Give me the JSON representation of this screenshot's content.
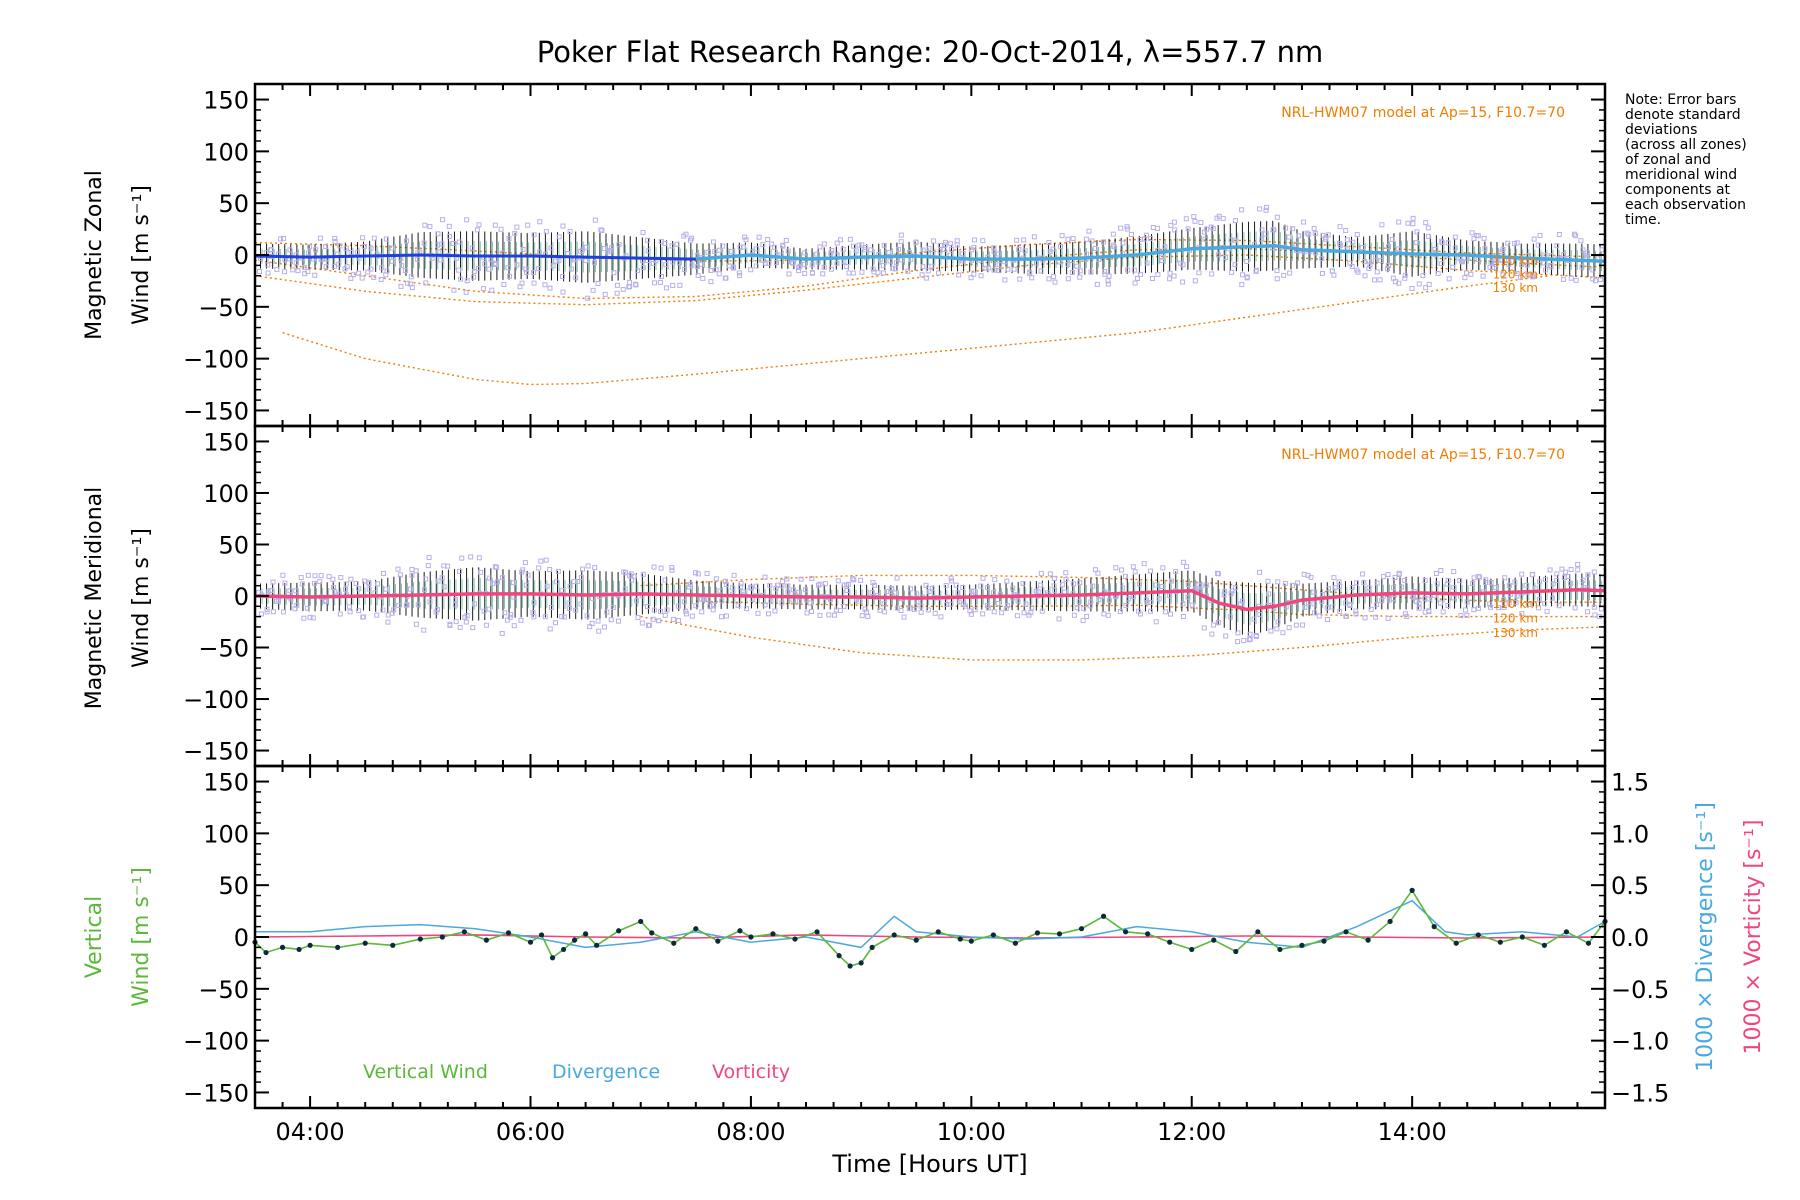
{
  "chart_data": {
    "type": "line",
    "title": "Poker Flat Research Range: 20-Oct-2014, λ=557.7 nm",
    "xlabel": "Time [Hours UT]",
    "xlim": [
      3.5,
      15.75
    ],
    "x_ticks": [
      {
        "value": 4,
        "label": "04:00"
      },
      {
        "value": 6,
        "label": "06:00"
      },
      {
        "value": 8,
        "label": "08:00"
      },
      {
        "value": 10,
        "label": "10:00"
      },
      {
        "value": 12,
        "label": "12:00"
      },
      {
        "value": 14,
        "label": "14:00"
      }
    ],
    "note": [
      "Note: Error bars",
      "denote standard",
      "deviations",
      "(across all zones)",
      "of zonal and",
      "meridional wind",
      "components at",
      "each observation",
      "time."
    ],
    "colors": {
      "model": "#f07c00",
      "zonal": "#1f3fe0",
      "zonal_late": "#4aa8e0",
      "meridional": "#f0457f",
      "vertical": "#5cb83a",
      "divergence": "#4aa8e0",
      "vorticity": "#f0457f",
      "scatter": "#b6b0e8",
      "points": "#0a2a3a"
    },
    "panels": [
      {
        "id": "zonal",
        "ylabel_line1": "Magnetic Zonal",
        "ylabel_line2": "Wind [m s⁻¹]",
        "ylim": [
          -165,
          165
        ],
        "y_ticks": [
          "150",
          "100",
          "50",
          "0",
          "−50",
          "−100",
          "−150"
        ],
        "y_tick_values": [
          150,
          100,
          50,
          0,
          -50,
          -100,
          -150
        ],
        "model_label": "NRL-HWM07 model at Ap=15, F10.7=70",
        "model_curves": [
          {
            "label": "110 km",
            "x": [
              3.5,
              4.5,
              5.5,
              6.5,
              7.5,
              8.5,
              9.5,
              10.5,
              11.5,
              12.5,
              13.5,
              14.5,
              15.75
            ],
            "y": [
              12,
              9,
              4,
              -2,
              -6,
              -5,
              2,
              10,
              15,
              14,
              8,
              2,
              -2
            ]
          },
          {
            "label": "120 km",
            "x": [
              3.5,
              4.5,
              5.5,
              6.5,
              7.5,
              8.5,
              9.5,
              10.5,
              11.5,
              12.5,
              13.5,
              14.5,
              15.75
            ],
            "y": [
              -5,
              -20,
              -35,
              -42,
              -40,
              -30,
              -15,
              -3,
              5,
              6,
              2,
              -5,
              -12
            ]
          },
          {
            "label": "130 km",
            "x": [
              3.5,
              4.5,
              5.5,
              6.5,
              7.5,
              8.5,
              9.5,
              10.5,
              11.5,
              12.5,
              13.5,
              14.5,
              15.75
            ],
            "y": [
              -20,
              -35,
              -45,
              -48,
              -44,
              -34,
              -22,
              -10,
              -2,
              0,
              -6,
              -15,
              -22
            ]
          },
          {
            "label": "",
            "x": [
              3.75,
              4.5,
              5.5,
              6.0,
              6.5,
              7.5,
              8.5,
              9.5,
              10.5,
              11.5,
              12.5,
              13.5,
              14.5,
              15.25
            ],
            "y": [
              -75,
              -100,
              -120,
              -125,
              -124,
              -115,
              -105,
              -95,
              -85,
              -75,
              -60,
              -45,
              -30,
              -20
            ]
          }
        ],
        "km_labels": [
          "110 km",
          "120 km",
          "130 km"
        ],
        "km_label_values": [
          -6,
          -19,
          -32
        ],
        "mean_x": [
          3.5,
          4.0,
          4.5,
          5.0,
          5.5,
          6.0,
          6.5,
          7.0,
          7.5,
          8.0,
          8.5,
          9.0,
          9.5,
          10.0,
          10.5,
          11.0,
          11.5,
          12.0,
          12.5,
          12.75,
          13.0,
          13.5,
          14.0,
          14.5,
          15.0,
          15.5,
          15.75
        ],
        "mean_y": [
          -1,
          -2,
          -1,
          0,
          -1,
          -1,
          -2,
          -3,
          -4,
          0,
          -4,
          -2,
          -1,
          -4,
          -4,
          -3,
          0,
          6,
          8,
          9,
          5,
          3,
          1,
          0,
          -3,
          -5,
          -6
        ],
        "spread": [
          12,
          12,
          14,
          22,
          24,
          22,
          25,
          20,
          15,
          12,
          10,
          12,
          14,
          12,
          14,
          16,
          18,
          20,
          24,
          24,
          18,
          14,
          22,
          14,
          14,
          16,
          16
        ]
      },
      {
        "id": "meridional",
        "ylabel_line1": "Magnetic Meridional",
        "ylabel_line2": "Wind [m s⁻¹]",
        "ylim": [
          -165,
          165
        ],
        "y_ticks": [
          "150",
          "100",
          "50",
          "0",
          "−50",
          "−100",
          "−150"
        ],
        "y_tick_values": [
          150,
          100,
          50,
          0,
          -50,
          -100,
          -150
        ],
        "model_label": "NRL-HWM07 model at Ap=15, F10.7=70",
        "model_curves": [
          {
            "label": "110 km",
            "x": [
              7.0,
              8.0,
              9.0,
              10.0,
              11.0,
              12.0,
              13.0,
              14.0,
              15.0,
              15.75
            ],
            "y": [
              10,
              16,
              20,
              20,
              18,
              14,
              6,
              -2,
              -6,
              -6
            ]
          },
          {
            "label": "120 km",
            "x": [
              7.5,
              8.5,
              9.5,
              10.5,
              11.5,
              12.5,
              13.0,
              14.0,
              15.0,
              15.75
            ],
            "y": [
              -5,
              -8,
              -10,
              -10,
              -9,
              -14,
              -18,
              -20,
              -20,
              -20
            ]
          },
          {
            "label": "130 km",
            "x": [
              7.0,
              8.0,
              9.0,
              10.0,
              11.0,
              12.0,
              13.0,
              14.0,
              15.0,
              15.75
            ],
            "y": [
              -20,
              -40,
              -55,
              -62,
              -62,
              -58,
              -50,
              -40,
              -33,
              -30
            ]
          }
        ],
        "km_labels": [
          "110 km",
          "120 km",
          "130 km"
        ],
        "km_label_values": [
          -8,
          -22,
          -36
        ],
        "mean_x": [
          3.5,
          4.0,
          4.5,
          5.0,
          5.5,
          6.0,
          6.5,
          7.0,
          7.5,
          8.0,
          8.5,
          9.0,
          9.5,
          10.0,
          10.5,
          11.0,
          11.5,
          12.0,
          12.25,
          12.5,
          12.75,
          13.0,
          13.5,
          14.0,
          14.5,
          15.0,
          15.5,
          15.75
        ],
        "mean_y": [
          0,
          -1,
          0,
          1,
          2,
          2,
          1,
          2,
          1,
          0,
          -1,
          -1,
          -2,
          -1,
          0,
          1,
          3,
          5,
          -7,
          -13,
          -10,
          -4,
          1,
          3,
          2,
          4,
          6,
          5
        ],
        "spread": [
          12,
          14,
          14,
          22,
          26,
          22,
          24,
          20,
          14,
          12,
          12,
          12,
          12,
          12,
          14,
          16,
          18,
          20,
          22,
          26,
          22,
          16,
          14,
          16,
          14,
          14,
          16,
          16
        ]
      },
      {
        "id": "vertical",
        "ylabel_line1": "Vertical",
        "ylabel_line2": "Wind [m s⁻¹]",
        "ylim": [
          -165,
          165
        ],
        "y_ticks": [
          "150",
          "100",
          "50",
          "0",
          "−50",
          "−100",
          "−150"
        ],
        "y_tick_values": [
          150,
          100,
          50,
          0,
          -50,
          -100,
          -150
        ],
        "right_label_line1": "1000 × Divergence [s⁻¹]",
        "right_label_line2": "1000 × Vorticity [s⁻¹]",
        "right_ylim": [
          -1.65,
          1.65
        ],
        "right_ticks": [
          "1.5",
          "1.0",
          "0.5",
          "0.0",
          "−0.5",
          "−1.0",
          "−1.5"
        ],
        "right_tick_values": [
          1.5,
          1.0,
          0.5,
          0.0,
          -0.5,
          -1.0,
          -1.5
        ],
        "legend": [
          "Vertical Wind",
          "Divergence",
          "Vorticity"
        ],
        "vertical_x": [
          3.5,
          3.6,
          3.75,
          3.9,
          4.0,
          4.25,
          4.5,
          4.75,
          5.0,
          5.2,
          5.4,
          5.6,
          5.8,
          6.0,
          6.1,
          6.2,
          6.3,
          6.4,
          6.5,
          6.6,
          6.8,
          7.0,
          7.1,
          7.3,
          7.5,
          7.7,
          7.9,
          8.0,
          8.2,
          8.4,
          8.6,
          8.8,
          8.9,
          9.0,
          9.1,
          9.3,
          9.5,
          9.7,
          9.9,
          10.0,
          10.2,
          10.4,
          10.6,
          10.8,
          11.0,
          11.2,
          11.4,
          11.6,
          11.8,
          12.0,
          12.2,
          12.4,
          12.6,
          12.8,
          13.0,
          13.2,
          13.4,
          13.6,
          13.8,
          14.0,
          14.2,
          14.4,
          14.6,
          14.8,
          15.0,
          15.2,
          15.4,
          15.6,
          15.75
        ],
        "vertical_y": [
          -5,
          -15,
          -10,
          -12,
          -8,
          -10,
          -6,
          -8,
          -2,
          0,
          5,
          -3,
          4,
          -5,
          2,
          -20,
          -12,
          -3,
          3,
          -8,
          6,
          15,
          4,
          -6,
          8,
          -4,
          6,
          0,
          3,
          -2,
          5,
          -18,
          -28,
          -25,
          -10,
          2,
          -3,
          5,
          -2,
          -4,
          2,
          -6,
          4,
          3,
          8,
          20,
          5,
          3,
          -5,
          -12,
          -3,
          -14,
          5,
          -12,
          -8,
          -4,
          5,
          -3,
          15,
          45,
          10,
          -6,
          2,
          -5,
          0,
          -8,
          5,
          -6,
          15
        ],
        "divergence_x": [
          3.5,
          4.0,
          4.5,
          5.0,
          5.5,
          6.0,
          6.5,
          7.0,
          7.5,
          8.0,
          8.5,
          9.0,
          9.3,
          9.5,
          10.0,
          10.5,
          11.0,
          11.5,
          12.0,
          12.5,
          13.0,
          13.5,
          14.0,
          14.3,
          14.5,
          15.0,
          15.5,
          15.75
        ],
        "divergence_y": [
          0.05,
          0.05,
          0.1,
          0.12,
          0.08,
          0.0,
          -0.1,
          -0.05,
          0.05,
          -0.05,
          0.0,
          -0.1,
          0.2,
          0.05,
          0.0,
          -0.02,
          0.0,
          0.1,
          0.05,
          -0.05,
          -0.1,
          0.1,
          0.35,
          0.05,
          0.02,
          0.05,
          0.0,
          0.15
        ],
        "vorticity_x": [
          3.5,
          4.5,
          5.5,
          6.5,
          7.5,
          8.5,
          9.5,
          10.5,
          11.5,
          12.5,
          13.5,
          14.5,
          15.75
        ],
        "vorticity_y": [
          0.0,
          0.01,
          0.02,
          0.0,
          -0.01,
          0.02,
          0.0,
          -0.01,
          0.0,
          0.01,
          0.0,
          -0.01,
          0.0
        ]
      }
    ]
  }
}
